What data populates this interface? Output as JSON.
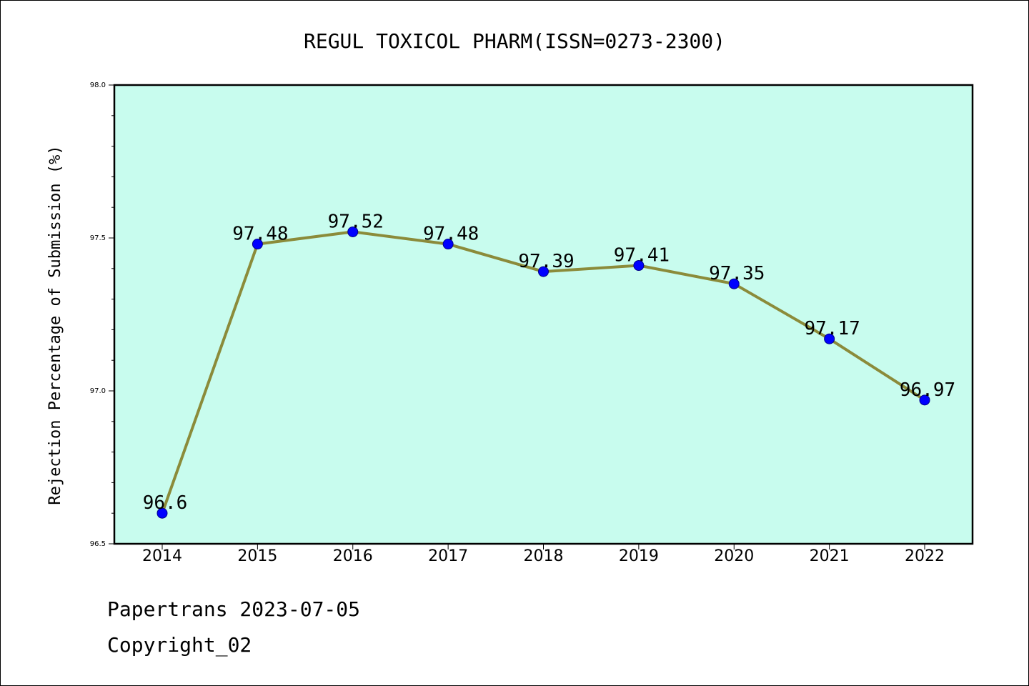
{
  "chart_data": {
    "type": "line",
    "title": "REGUL TOXICOL PHARM(ISSN=0273-2300)",
    "xlabel": "",
    "ylabel": "Rejection Percentage of Submission (%)",
    "categories": [
      "2014",
      "2015",
      "2016",
      "2017",
      "2018",
      "2019",
      "2020",
      "2021",
      "2022"
    ],
    "series": [
      {
        "values": [
          96.6,
          97.48,
          97.52,
          97.48,
          97.39,
          97.41,
          97.35,
          97.17,
          96.97
        ],
        "labels": [
          "96.6",
          "97.48",
          "97.52",
          "97.48",
          "97.39",
          "97.41",
          "97.35",
          "97.17",
          "96.97"
        ]
      }
    ],
    "ylim": [
      96.5,
      98.0
    ],
    "yticks": [
      "96.5",
      "97.0",
      "97.5",
      "98.0"
    ],
    "grid": false,
    "colors": {
      "plot_background": "#c8fcee",
      "line": "#8b8b3a",
      "marker": "#0000ff"
    }
  },
  "footer": {
    "brand": "Papertrans 2023-07-05",
    "copyright": "Copyright_02"
  }
}
